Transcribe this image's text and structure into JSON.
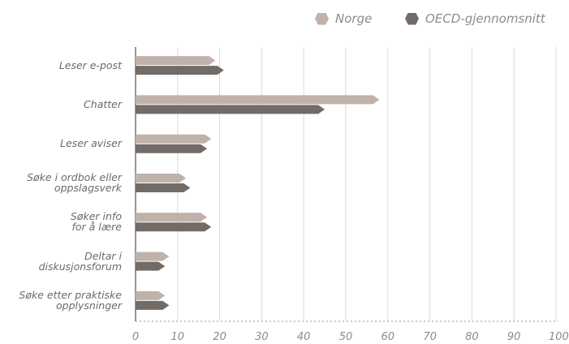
{
  "legend": {
    "norge": "Norge",
    "oecd": "OECD-gjennomsnitt"
  },
  "colors": {
    "norge": "#bfb2aa",
    "oecd": "#736b67",
    "grid": "#d9d9d9",
    "axis": "#555555"
  },
  "chart_data": {
    "type": "bar",
    "orientation": "horizontal",
    "categories": [
      [
        "Leser e-post"
      ],
      [
        "Chatter"
      ],
      [
        "Leser aviser"
      ],
      [
        "Søke i ordbok eller",
        "oppslagsverk"
      ],
      [
        "Søker info",
        "for å lære"
      ],
      [
        "Deltar i",
        "diskusjonsforum"
      ],
      [
        "Søke etter praktiske",
        "opplysninger"
      ]
    ],
    "series": [
      {
        "name": "Norge",
        "values": [
          19,
          58,
          18,
          12,
          17,
          8,
          7
        ]
      },
      {
        "name": "OECD-gjennomsnitt",
        "values": [
          21,
          45,
          17,
          13,
          18,
          7,
          8
        ]
      }
    ],
    "xlim": [
      0,
      100
    ],
    "xticks": [
      "0",
      "10",
      "20",
      "30",
      "40",
      "50",
      "60",
      "70",
      "80",
      "90",
      "100"
    ],
    "grid": true,
    "legend_position": "top-right"
  }
}
